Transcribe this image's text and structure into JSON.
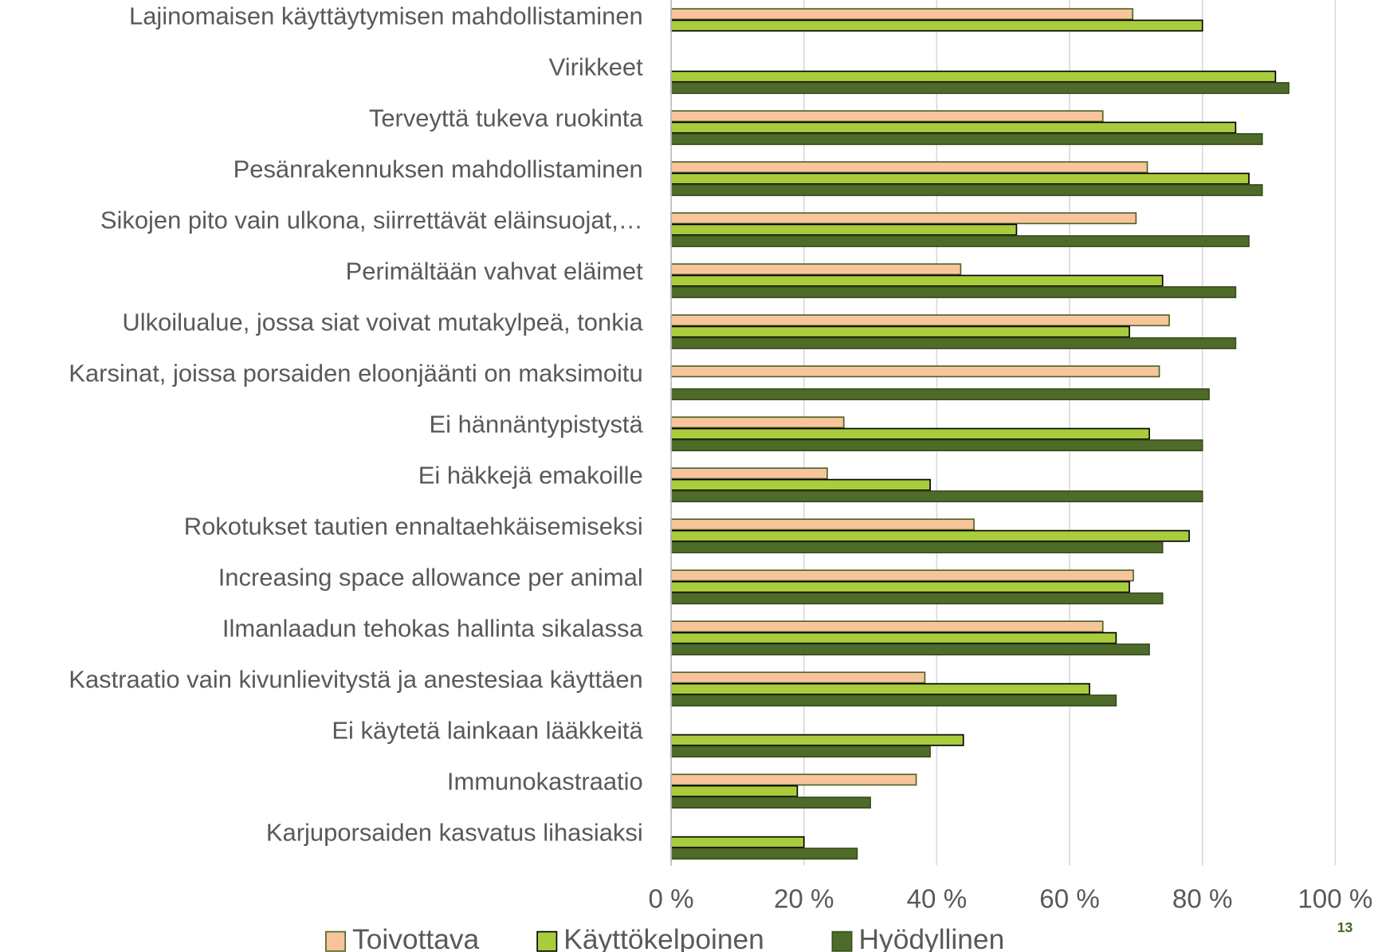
{
  "chart_data": {
    "type": "barh",
    "categories": [
      "Lajinomaisen käyttäytymisen mahdollistaminen",
      "Virikkeet",
      "Terveyttä tukeva ruokinta",
      "Pesänrakennuksen mahdollistaminen",
      "Sikojen pito vain ulkona, siirrettävät eläinsuojat,…",
      "Perimältään vahvat eläimet",
      "Ulkoilualue, jossa siat voivat mutakylpeä, tonkia",
      "Karsinat, joissa porsaiden eloonjäänti on maksimoitu",
      "Ei hännäntypistystä",
      "Ei häkkejä emakoille",
      "Rokotukset tautien ennaltaehkäisemiseksi",
      "Increasing space allowance per animal",
      "Ilmanlaadun tehokas hallinta sikalassa",
      "Kastraatio vain kivunlievitystä ja anestesiaa käyttäen",
      "Ei käytetä lainkaan lääkkeitä",
      "Immunokastraatio",
      "Karjuporsaiden kasvatus lihasiaksi"
    ],
    "series": [
      {
        "name": "Toivottava",
        "color": "#f8c49b",
        "stroke": "#4f6228",
        "values": [
          69.5,
          null,
          65,
          71.7,
          70,
          43.6,
          75,
          73.5,
          26,
          23.5,
          45.6,
          69.6,
          65,
          38.2,
          null,
          36.9,
          null
        ]
      },
      {
        "name": "Käyttökelpoinen",
        "color": "#a9cc3c",
        "stroke": "#000000",
        "values": [
          80,
          91,
          85,
          87,
          52,
          74,
          69,
          null,
          72,
          39,
          78,
          69,
          67,
          63,
          44,
          19,
          20
        ]
      },
      {
        "name": "Hyödyllinen",
        "color": "#4f6b2a",
        "stroke": "#3a4f1e",
        "values": [
          null,
          93,
          89,
          89,
          87,
          85,
          85,
          81,
          80,
          80,
          74,
          74,
          72,
          67,
          39,
          30,
          28
        ]
      }
    ],
    "xlim": [
      0,
      100
    ],
    "xticks": [
      {
        "value": 0,
        "label": "0 %"
      },
      {
        "value": 20,
        "label": "20 %"
      },
      {
        "value": 40,
        "label": "40 %"
      },
      {
        "value": 60,
        "label": "60 %"
      },
      {
        "value": 80,
        "label": "80 %"
      },
      {
        "value": 100,
        "label": "100 %"
      }
    ],
    "grid": true,
    "legend": "bottom"
  },
  "page_number": "13"
}
